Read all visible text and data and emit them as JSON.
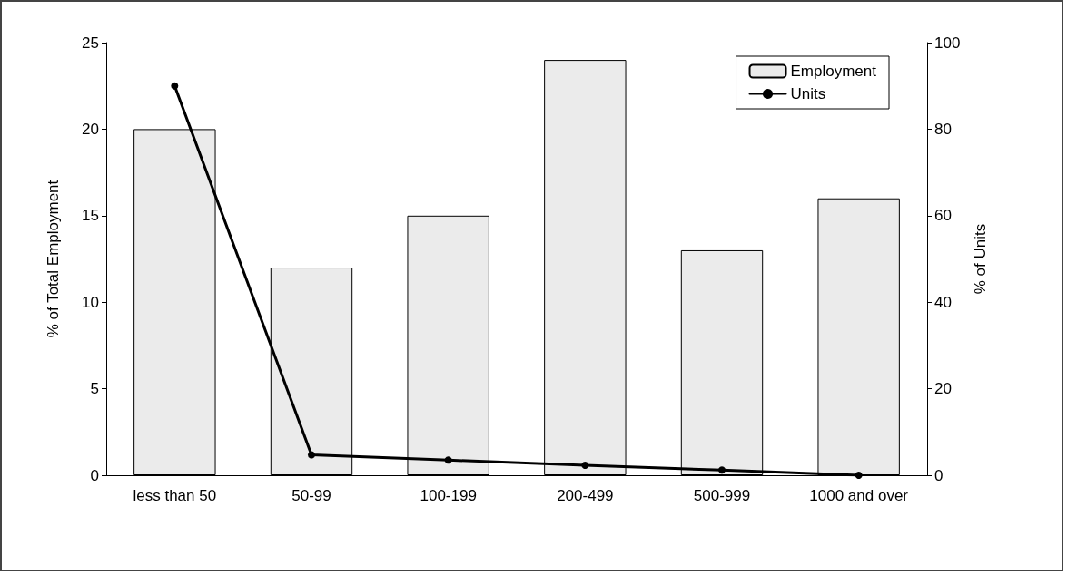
{
  "chart_data": {
    "type": "bar",
    "categories": [
      "less than 50",
      "50-99",
      "100-199",
      "200-499",
      "500-999",
      "1000 and over"
    ],
    "series": [
      {
        "name": "Employment",
        "color": "#ebebeb",
        "values": [
          20,
          12,
          15,
          24,
          13,
          16
        ]
      },
      {
        "name": "Units",
        "type": "line",
        "axis": "y2",
        "color": "#000000",
        "values": [
          90,
          4.7,
          3.5,
          2.3,
          1.2,
          0
        ]
      }
    ],
    "ylabel": "% of Total Employment",
    "y2label": "% of Units",
    "ylim": [
      0,
      25
    ],
    "yticks": [
      0,
      5,
      10,
      15,
      20,
      25
    ],
    "y2lim": [
      0,
      100
    ],
    "y2ticks": [
      0,
      20,
      40,
      60,
      80,
      100
    ],
    "grid": false,
    "legend": "top right",
    "marker": "circle",
    "line_style": "solid"
  }
}
